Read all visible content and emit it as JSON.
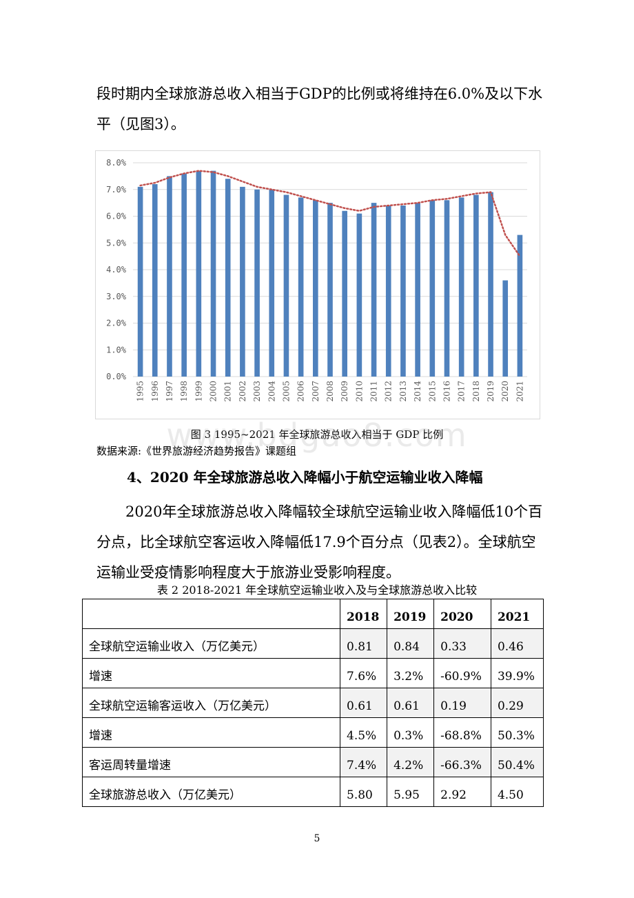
{
  "paragraphs": {
    "p1": "段时期内全球旅游总收入相当于GDP的比例或将维持在6.0%及以下水平（见图3）。",
    "p2": "2020年全球旅游总收入降幅较全球航空运输业收入降幅低10个百分点，比全球航空客运收入降幅低17.9个百分点（见表2）。全球航空运输业受疫情影响程度大于旅游业受影响程度。"
  },
  "figure": {
    "caption": "图 3 1995~2021 年全球旅游总收入相当于 GDP 比例",
    "source": "数据来源:《世界旅游经济趋势报告》课题组"
  },
  "section": {
    "heading": "4、2020 年全球旅游总收入降幅小于航空运输业收入降幅"
  },
  "chart_data": {
    "type": "bar",
    "categories": [
      "1995",
      "1996",
      "1997",
      "1998",
      "1999",
      "2000",
      "2001",
      "2002",
      "2003",
      "2004",
      "2005",
      "2006",
      "2007",
      "2008",
      "2009",
      "2010",
      "2011",
      "2012",
      "2013",
      "2014",
      "2015",
      "2016",
      "2017",
      "2018",
      "2019",
      "2020",
      "2021"
    ],
    "values": [
      7.1,
      7.2,
      7.5,
      7.6,
      7.7,
      7.7,
      7.4,
      7.1,
      7.0,
      7.0,
      6.8,
      6.7,
      6.6,
      6.5,
      6.2,
      6.1,
      6.5,
      6.4,
      6.4,
      6.5,
      6.6,
      6.6,
      6.7,
      6.8,
      6.9,
      3.6,
      5.3
    ],
    "trendline": [
      7.15,
      7.25,
      7.45,
      7.6,
      7.7,
      7.65,
      7.5,
      7.3,
      7.1,
      7.0,
      6.9,
      6.75,
      6.6,
      6.45,
      6.3,
      6.2,
      6.35,
      6.4,
      6.45,
      6.5,
      6.6,
      6.65,
      6.75,
      6.85,
      6.9,
      5.3,
      4.5
    ],
    "ylim": [
      0,
      8
    ],
    "yticks": [
      "0.0%",
      "1.0%",
      "2.0%",
      "3.0%",
      "4.0%",
      "5.0%",
      "6.0%",
      "7.0%",
      "8.0%"
    ],
    "grid": true,
    "bar_color": "#4f81bd",
    "trend_color": "#c0504d"
  },
  "table": {
    "caption": "表 2 2018-2021 年全球航空运输业收入及与全球旅游总收入比较",
    "headers": [
      "",
      "2018",
      "2019",
      "2020",
      "2021"
    ],
    "rows": [
      [
        "全球航空运输业收入（万亿美元）",
        "0.81",
        "0.84",
        "0.33",
        "0.46"
      ],
      [
        "增速",
        "7.6%",
        "3.2%",
        "-60.9%",
        "39.9%"
      ],
      [
        "全球航空运输客运收入（万亿美元）",
        "0.61",
        "0.61",
        "0.19",
        "0.29"
      ],
      [
        "增速",
        "4.5%",
        "0.3%",
        "-68.8%",
        "50.3%"
      ],
      [
        "客运周转量增速",
        "7.4%",
        "4.2%",
        "-66.3%",
        "50.4%"
      ],
      [
        "全球旅游总收入（万亿美元）",
        "5.80",
        "5.95",
        "2.92",
        "4.50"
      ]
    ]
  },
  "page": {
    "number": "5"
  },
  "watermark": "www.bdgao8.com"
}
